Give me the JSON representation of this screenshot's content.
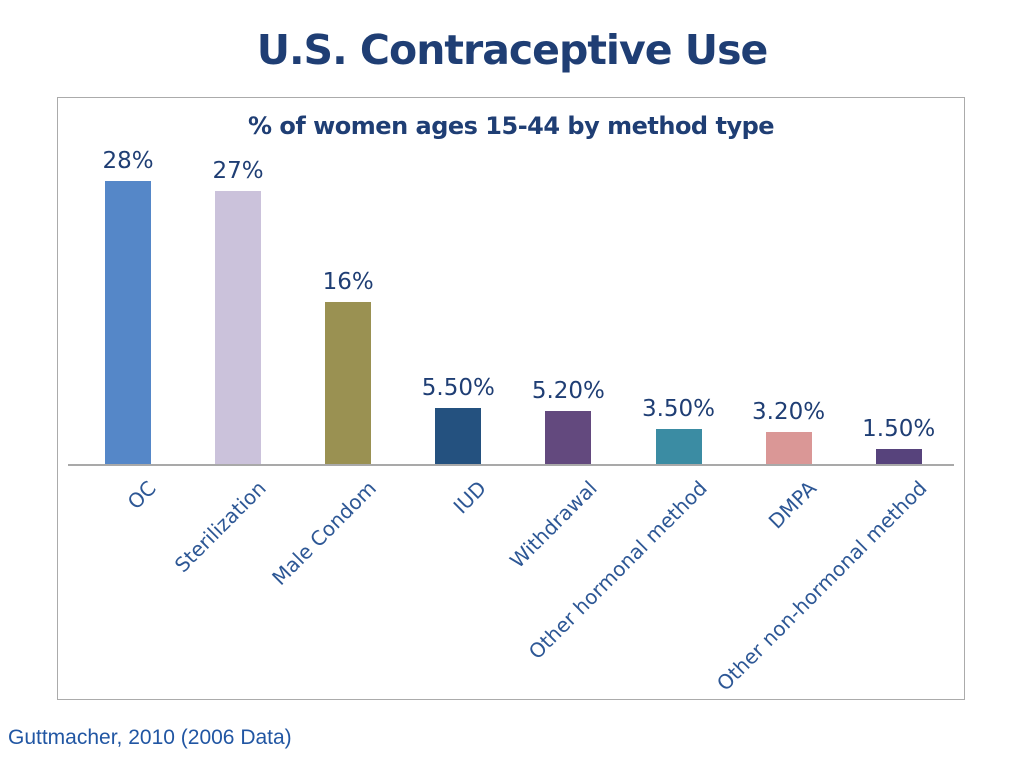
{
  "page": {
    "title": "U.S. Contraceptive Use",
    "source": "Guttmacher, 2010 (2006 Data)"
  },
  "chart_data": {
    "type": "bar",
    "title": "% of women ages 15-44 by method type",
    "categories": [
      "OC",
      "Sterilization",
      "Male Condom",
      "IUD",
      "Withdrawal",
      "Other hormonal method",
      "DMPA",
      "Other non-hormonal method"
    ],
    "values": [
      28,
      27,
      16,
      5.5,
      5.2,
      3.5,
      3.2,
      1.5
    ],
    "value_labels": [
      "28%",
      "27%",
      "16%",
      "5.50%",
      "5.20%",
      "3.50%",
      "3.20%",
      "1.50%"
    ],
    "bar_colors": [
      "#5587c8",
      "#cbc2db",
      "#9a9152",
      "#24517f",
      "#63497e",
      "#3b8ca3",
      "#da9796",
      "#57437c"
    ],
    "xlabel": "",
    "ylabel": "",
    "ylim": [
      0,
      30
    ],
    "grid": false,
    "legend": false,
    "label_color": "#1f3e74",
    "category_label_color": "#2d5795",
    "axis_line_color": "#a9a9a9",
    "category_label_rotation_deg": -45
  }
}
